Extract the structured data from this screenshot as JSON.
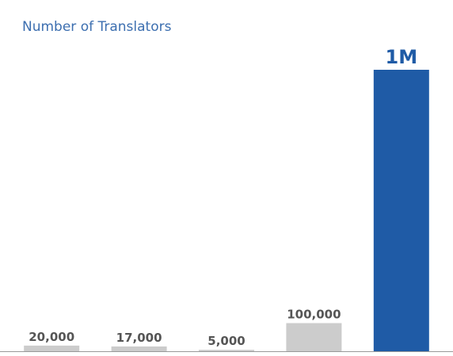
{
  "chart_data": {
    "type": "bar",
    "title": "Number of Translators",
    "categories": [
      null,
      null,
      null,
      null,
      null
    ],
    "values": [
      20000,
      17000,
      5000,
      100000,
      1000000
    ],
    "value_labels": [
      "20,000",
      "17,000",
      "5,000",
      "100,000",
      "1M"
    ],
    "colors": [
      "#cccccc",
      "#cccccc",
      "#cccccc",
      "#cccccc",
      "#1f5ba6"
    ],
    "value_label_colors": [
      "#555555",
      "#555555",
      "#555555",
      "#555555",
      "#1f5ba6"
    ]
  }
}
